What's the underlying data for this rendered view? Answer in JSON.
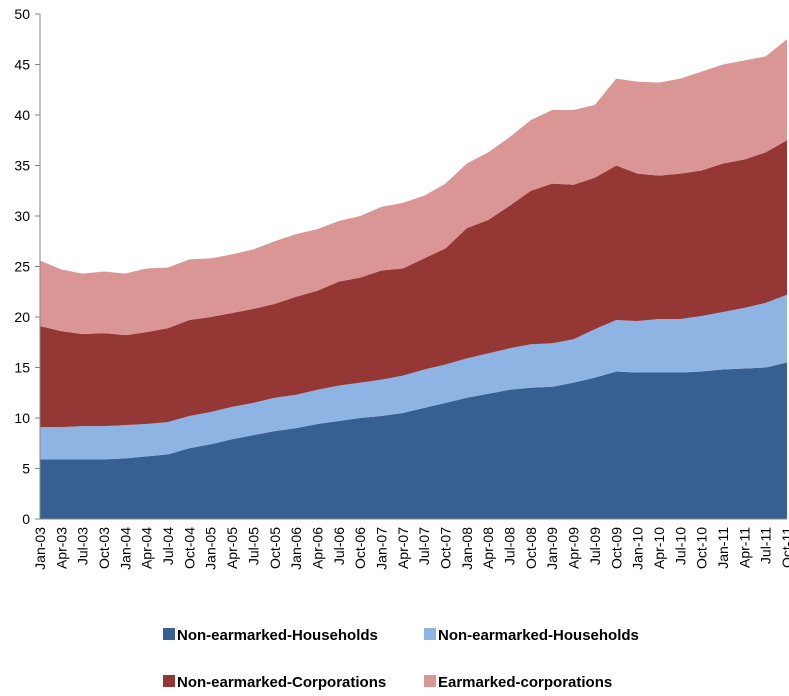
{
  "chart_data": {
    "type": "stacked-area",
    "categories": [
      "Jan-03",
      "Apr-03",
      "Jul-03",
      "Oct-03",
      "Jan-04",
      "Apr-04",
      "Jul-04",
      "Oct-04",
      "Jan-05",
      "Apr-05",
      "Jul-05",
      "Oct-05",
      "Jan-06",
      "Apr-06",
      "Jul-06",
      "Oct-06",
      "Jan-07",
      "Apr-07",
      "Jul-07",
      "Oct-07",
      "Jan-08",
      "Apr-08",
      "Jul-08",
      "Oct-08",
      "Jan-09",
      "Apr-09",
      "Jul-09",
      "Oct-09",
      "Jan-10",
      "Apr-10",
      "Jul-10",
      "Oct-10",
      "Jan-11",
      "Apr-11",
      "Jul-11",
      "Oct-11"
    ],
    "series": [
      {
        "name": "Non-earmarked-Households",
        "color": "#376092",
        "values": [
          5.9,
          5.9,
          5.9,
          5.9,
          6.0,
          6.2,
          6.4,
          7.0,
          7.4,
          7.9,
          8.3,
          8.7,
          9.0,
          9.4,
          9.7,
          10.0,
          10.2,
          10.5,
          11.0,
          11.5,
          12.0,
          12.4,
          12.8,
          13.0,
          13.1,
          13.5,
          14.0,
          14.6,
          14.5,
          14.5,
          14.5,
          14.6,
          14.8,
          14.9,
          15.0,
          15.5
        ]
      },
      {
        "name": "Non-earmarked-Households",
        "color": "#8eb4e3",
        "values": [
          3.2,
          3.2,
          3.3,
          3.3,
          3.3,
          3.2,
          3.2,
          3.2,
          3.2,
          3.2,
          3.2,
          3.3,
          3.3,
          3.4,
          3.5,
          3.5,
          3.6,
          3.7,
          3.8,
          3.8,
          3.9,
          4.0,
          4.1,
          4.3,
          4.3,
          4.3,
          4.8,
          5.1,
          5.1,
          5.3,
          5.3,
          5.5,
          5.7,
          6.0,
          6.4,
          6.7
        ]
      },
      {
        "name": "Non-earmarked-Corporations",
        "color": "#953735",
        "values": [
          10.0,
          9.5,
          9.1,
          9.2,
          8.9,
          9.1,
          9.3,
          9.5,
          9.4,
          9.3,
          9.3,
          9.3,
          9.7,
          9.8,
          10.3,
          10.4,
          10.8,
          10.6,
          11.0,
          11.5,
          12.9,
          13.2,
          14.1,
          15.2,
          15.8,
          15.3,
          15.0,
          15.3,
          14.6,
          14.2,
          14.4,
          14.4,
          14.7,
          14.7,
          14.9,
          15.3
        ]
      },
      {
        "name": "Earmarked-corporations",
        "color": "#d99694",
        "values": [
          6.5,
          6.1,
          6.0,
          6.1,
          6.1,
          6.3,
          6.0,
          6.0,
          5.8,
          5.8,
          5.9,
          6.2,
          6.2,
          6.1,
          6.0,
          6.1,
          6.3,
          6.5,
          6.2,
          6.4,
          6.4,
          6.7,
          6.8,
          7.0,
          7.3,
          7.4,
          7.2,
          8.6,
          9.1,
          9.2,
          9.4,
          9.8,
          9.8,
          9.8,
          9.5,
          10.0
        ]
      }
    ],
    "ylim": [
      0,
      50
    ],
    "yticks": [
      0,
      5,
      10,
      15,
      20,
      25,
      30,
      35,
      40,
      45,
      50
    ],
    "grid": false,
    "legend": "bottom"
  }
}
